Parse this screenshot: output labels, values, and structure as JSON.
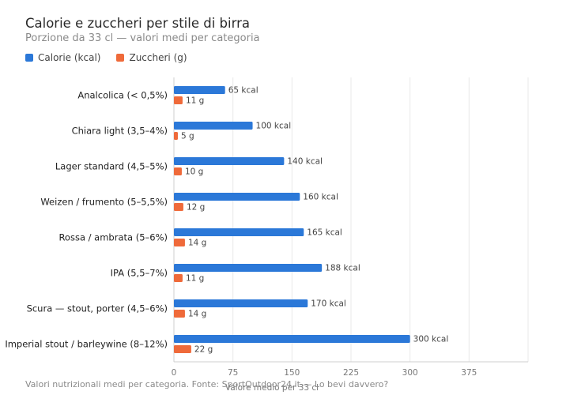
{
  "chart_data": {
    "type": "bar",
    "orientation": "horizontal",
    "title": "Calorie e zuccheri per stile di birra",
    "subtitle": "Porzione da 33 cl — valori medi per categoria",
    "xlabel": "Valore medio per 33 cl",
    "ylabel": "",
    "xlim": [
      0,
      450
    ],
    "xticks": [
      0,
      75,
      150,
      225,
      300,
      375
    ],
    "grid": true,
    "legend_position": "top-left",
    "categories": [
      "Analcolica (< 0,5%)",
      "Chiara light (3,5–4%)",
      "Lager standard (4,5–5%)",
      "Weizen / frumento (5–5,5%)",
      "Rossa / ambrata (5–6%)",
      "IPA (5,5–7%)",
      "Scura — stout, porter (4,5–6%)",
      "Imperial stout / barleywine (8–12%)"
    ],
    "series": [
      {
        "name": "Calorie (kcal)",
        "color": "#2b78d8",
        "values": [
          65,
          100,
          140,
          160,
          165,
          188,
          170,
          300
        ],
        "labels": [
          "65 kcal",
          "100 kcal",
          "140 kcal",
          "160 kcal",
          "165 kcal",
          "188 kcal",
          "170 kcal",
          "300 kcal"
        ]
      },
      {
        "name": "Zuccheri (g)",
        "color": "#ef6a3a",
        "values": [
          11,
          5,
          10,
          12,
          14,
          11,
          14,
          22
        ],
        "labels": [
          "11 g",
          "5 g",
          "10 g",
          "12 g",
          "14 g",
          "11 g",
          "14 g",
          "22 g"
        ]
      }
    ]
  },
  "footnote": "Valori nutrizionali medi per categoria. Fonte: SportOutdoor24.it — Lo bevi davvero?"
}
